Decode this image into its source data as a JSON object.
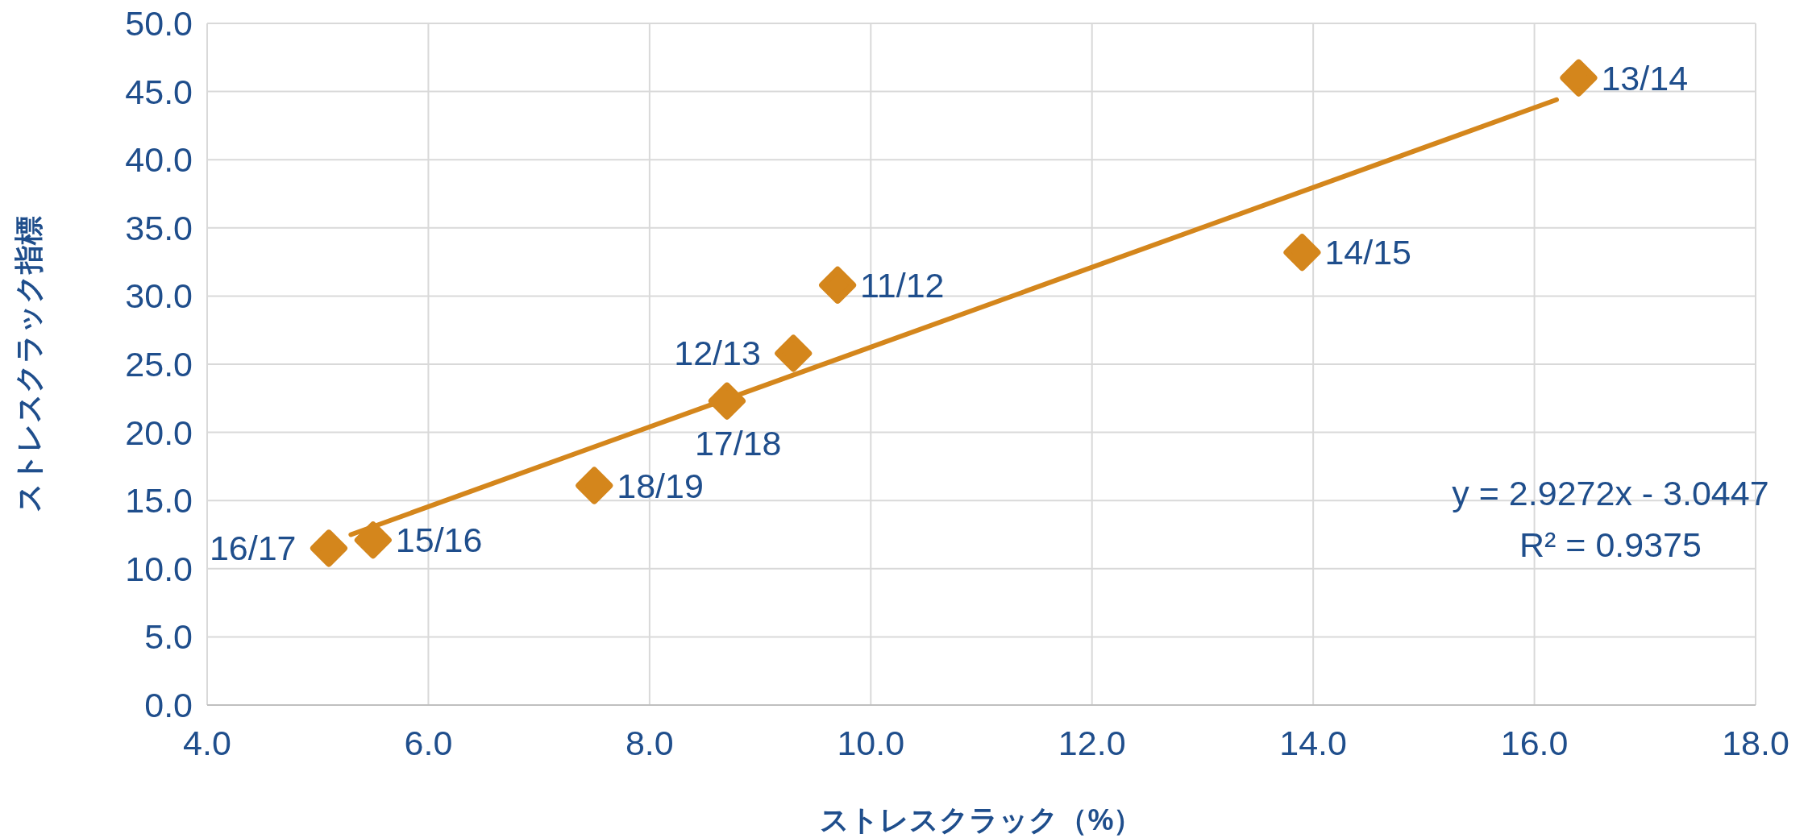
{
  "chart_data": {
    "type": "scatter",
    "xlabel": "ストレスクラック（%）",
    "ylabel": "ストレスクラック指標",
    "xlim": [
      4,
      18
    ],
    "ylim": [
      0,
      50
    ],
    "xticks": [
      {
        "value": 4,
        "label": "4.0"
      },
      {
        "value": 6,
        "label": "6.0"
      },
      {
        "value": 8,
        "label": "8.0"
      },
      {
        "value": 10,
        "label": "10.0"
      },
      {
        "value": 12,
        "label": "12.0"
      },
      {
        "value": 14,
        "label": "14.0"
      },
      {
        "value": 16,
        "label": "16.0"
      },
      {
        "value": 18,
        "label": "18.0"
      }
    ],
    "yticks": [
      {
        "value": 0,
        "label": "0.0"
      },
      {
        "value": 5,
        "label": "5.0"
      },
      {
        "value": 10,
        "label": "10.0"
      },
      {
        "value": 15,
        "label": "15.0"
      },
      {
        "value": 20,
        "label": "20.0"
      },
      {
        "value": 25,
        "label": "25.0"
      },
      {
        "value": 30,
        "label": "30.0"
      },
      {
        "value": 35,
        "label": "35.0"
      },
      {
        "value": 40,
        "label": "40.0"
      },
      {
        "value": 45,
        "label": "45.0"
      },
      {
        "value": 50,
        "label": "50.0"
      }
    ],
    "grid": true,
    "marker": "diamond",
    "series": [
      {
        "color": "#d4861c",
        "x": [
          9.7,
          9.3,
          16.4,
          13.9,
          5.5,
          5.1,
          8.7,
          7.5
        ],
        "values": [
          30.8,
          25.8,
          46.0,
          33.2,
          12.1,
          11.5,
          22.3,
          16.1
        ]
      },
      {
        "type": "line",
        "marker": "none",
        "color": "#d4861c",
        "x": [
          5.3,
          16.2
        ],
        "values": [
          12.5,
          44.4
        ]
      }
    ],
    "annotations": [
      {
        "text": "11/12",
        "x": 9.7,
        "y": 30.8
      },
      {
        "text": "12/13",
        "x": 9.3,
        "y": 25.8
      },
      {
        "text": "13/14",
        "x": 16.4,
        "y": 46.0
      },
      {
        "text": "14/15",
        "x": 13.9,
        "y": 33.2
      },
      {
        "text": "15/16",
        "x": 5.5,
        "y": 12.1
      },
      {
        "text": "16/17",
        "x": 5.1,
        "y": 11.5
      },
      {
        "text": "17/18",
        "x": 8.7,
        "y": 22.3
      },
      {
        "text": "18/19",
        "x": 7.5,
        "y": 16.1
      },
      "y = 2.9272x - 3.0447",
      "R² = 0.9375"
    ]
  }
}
